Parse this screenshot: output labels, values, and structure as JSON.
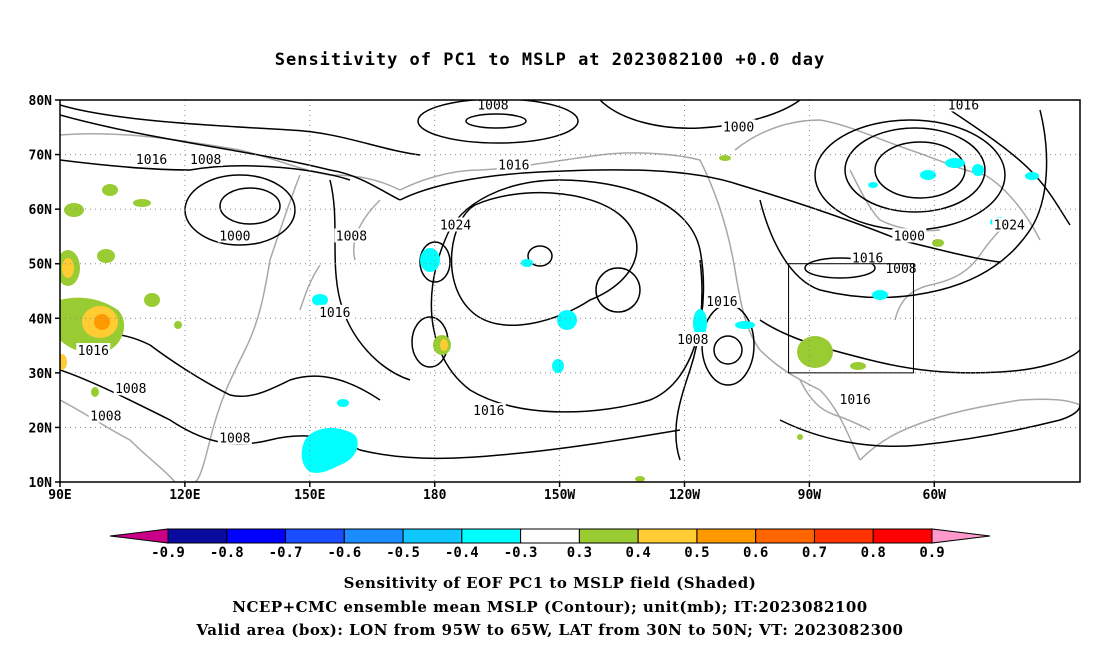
{
  "title": "Sensitivity of PC1 to MSLP at 2023082100 +0.0 day",
  "lat_labels": [
    "80N",
    "70N",
    "60N",
    "50N",
    "40N",
    "30N",
    "20N",
    "10N"
  ],
  "lon_labels": [
    "90E",
    "120E",
    "150E",
    "180",
    "150W",
    "120W",
    "90W",
    "60W"
  ],
  "contour_labels": [
    {
      "text": "1008",
      "lon": 194,
      "lat": 79
    },
    {
      "text": "1016",
      "lon": 307,
      "lat": 79
    },
    {
      "text": "1000",
      "lon": 253,
      "lat": 75
    },
    {
      "text": "1016",
      "lon": 112,
      "lat": 69
    },
    {
      "text": "1008",
      "lon": 125,
      "lat": 69
    },
    {
      "text": "1016",
      "lon": 199,
      "lat": 68
    },
    {
      "text": "1000",
      "lon": 132,
      "lat": 55
    },
    {
      "text": "1008",
      "lon": 160,
      "lat": 55
    },
    {
      "text": "1024",
      "lon": 185,
      "lat": 57
    },
    {
      "text": "1024",
      "lon": 318,
      "lat": 57
    },
    {
      "text": "1016",
      "lon": 284,
      "lat": 51
    },
    {
      "text": "1000",
      "lon": 294,
      "lat": 55
    },
    {
      "text": "1008",
      "lon": 292,
      "lat": 49
    },
    {
      "text": "1016",
      "lon": 156,
      "lat": 41
    },
    {
      "text": "1016",
      "lon": 249,
      "lat": 43
    },
    {
      "text": "1008",
      "lon": 242,
      "lat": 36
    },
    {
      "text": "1016",
      "lon": 98,
      "lat": 34
    },
    {
      "text": "1008",
      "lon": 107,
      "lat": 27
    },
    {
      "text": "1016",
      "lon": 281,
      "lat": 25
    },
    {
      "text": "1008",
      "lon": 101,
      "lat": 22
    },
    {
      "text": "1016",
      "lon": 193,
      "lat": 23
    },
    {
      "text": "1008",
      "lon": 132,
      "lat": 18
    }
  ],
  "valid_box": {
    "lon_min": 265,
    "lon_max": 295,
    "lat_min": 30,
    "lat_max": 50
  },
  "colorbar": {
    "labels": [
      "-0.9",
      "-0.8",
      "-0.7",
      "-0.6",
      "-0.5",
      "-0.4",
      "-0.3",
      "0.3",
      "0.4",
      "0.5",
      "0.6",
      "0.7",
      "0.8",
      "0.9"
    ],
    "colors": [
      "#0a0a9e",
      "#0000ff",
      "#1a4dff",
      "#1a8cff",
      "#10c8ff",
      "#00ffff",
      "#ffffff",
      "#99cc33",
      "#ffcc33",
      "#ff9900",
      "#ff6600",
      "#ff3300",
      "#ff0000"
    ],
    "low_end_color": "#cc0088",
    "high_end_color": "#ff99cc"
  },
  "captions": [
    "Sensitivity of EOF PC1 to MSLP field (Shaded)",
    "NCEP+CMC ensemble mean MSLP (Contour); unit(mb); IT:2023082100",
    "Valid area (box): LON from 95W to 65W, LAT from 30N to 50N; VT: 2023082300"
  ]
}
